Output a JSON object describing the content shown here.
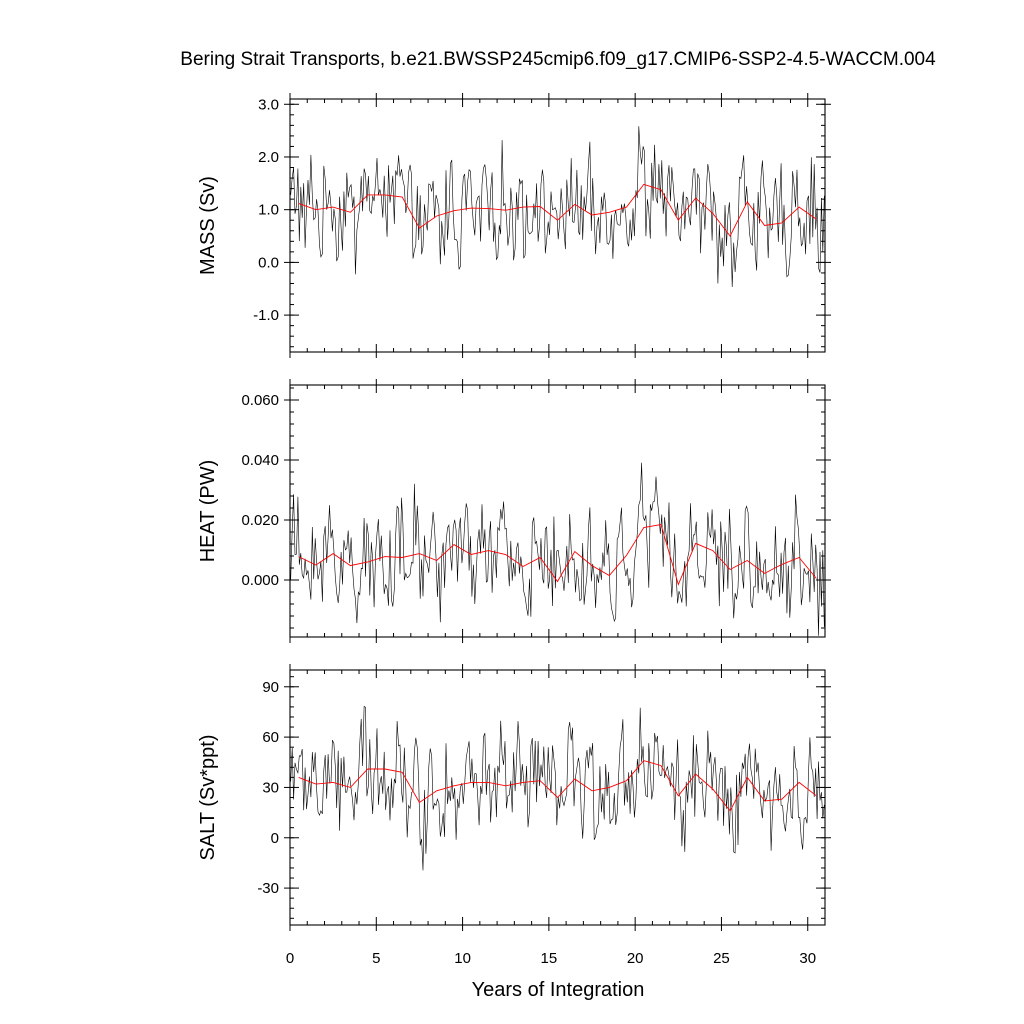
{
  "chart_data": {
    "title": "Bering Strait Transports, b.e21.BWSSP245cmip6.f09_g17.CMIP6-SSP2-4.5-WACCM.004",
    "xlabel": "Years of Integration",
    "xlim": [
      0,
      31
    ],
    "xticks": [
      0,
      5,
      10,
      15,
      20,
      25,
      30
    ],
    "panels": [
      {
        "id": "mass",
        "type": "line",
        "ylabel": "MASS (Sv)",
        "ylim": [
          -1.7,
          3.1
        ],
        "yticks": [
          3.0,
          2.0,
          1.0,
          0.0,
          -1.0
        ],
        "ytick_labels": [
          "3.0",
          "2.0",
          "1.0",
          "0.0",
          "-1.0"
        ],
        "annual_x": [
          0.5,
          1.5,
          2.5,
          3.5,
          4.5,
          5.5,
          6.5,
          7.5,
          8.5,
          9.5,
          10.5,
          11.5,
          12.5,
          13.5,
          14.5,
          15.5,
          16.5,
          17.5,
          18.5,
          19.5,
          20.5,
          21.5,
          22.5,
          23.5,
          24.5,
          25.5,
          26.5,
          27.5,
          28.5,
          29.5,
          30.5
        ],
        "annual_mean": [
          1.12,
          1.0,
          1.05,
          0.95,
          1.28,
          1.28,
          1.24,
          0.65,
          0.88,
          0.98,
          1.03,
          1.02,
          0.99,
          1.05,
          1.06,
          0.8,
          1.1,
          0.9,
          0.95,
          1.05,
          1.48,
          1.38,
          0.8,
          1.22,
          0.93,
          0.5,
          1.15,
          0.7,
          0.75,
          1.05,
          0.82
        ]
      },
      {
        "id": "heat",
        "type": "line",
        "ylabel": "HEAT (PW)",
        "ylim": [
          -0.019,
          0.065
        ],
        "yticks": [
          0.06,
          0.04,
          0.02,
          0.0
        ],
        "ytick_labels": [
          "0.060",
          "0.040",
          "0.020",
          "0.000"
        ],
        "annual_x": [
          0.5,
          1.5,
          2.5,
          3.5,
          4.5,
          5.5,
          6.5,
          7.5,
          8.5,
          9.5,
          10.5,
          11.5,
          12.5,
          13.5,
          14.5,
          15.5,
          16.5,
          17.5,
          18.5,
          19.5,
          20.5,
          21.5,
          22.5,
          23.5,
          24.5,
          25.5,
          26.5,
          27.5,
          28.5,
          29.5,
          30.5
        ],
        "annual_mean": [
          0.0078,
          0.005,
          0.0088,
          0.0048,
          0.006,
          0.0078,
          0.0075,
          0.0088,
          0.0065,
          0.0118,
          0.0085,
          0.0098,
          0.0085,
          0.0045,
          0.0075,
          -0.0005,
          0.0095,
          0.0048,
          0.0015,
          0.0082,
          0.0175,
          0.0185,
          -0.0015,
          0.0122,
          0.0098,
          0.0035,
          0.0065,
          0.0022,
          0.0052,
          0.0075,
          0.0005
        ]
      },
      {
        "id": "salt",
        "type": "line",
        "ylabel": "SALT (Sv*ppt)",
        "ylim": [
          -52,
          100
        ],
        "yticks": [
          90,
          60,
          30,
          0,
          -30
        ],
        "ytick_labels": [
          "90",
          "60",
          "30",
          "0",
          "-30"
        ],
        "annual_x": [
          0.5,
          1.5,
          2.5,
          3.5,
          4.5,
          5.5,
          6.5,
          7.5,
          8.5,
          9.5,
          10.5,
          11.5,
          12.5,
          13.5,
          14.5,
          15.5,
          16.5,
          17.5,
          18.5,
          19.5,
          20.5,
          21.5,
          22.5,
          23.5,
          24.5,
          25.5,
          26.5,
          27.5,
          28.5,
          29.5,
          30.5
        ],
        "annual_mean": [
          36,
          32,
          33,
          30,
          41,
          41,
          39,
          21,
          28,
          31,
          33,
          33,
          31,
          33,
          34,
          24,
          35,
          28,
          30,
          34,
          46,
          43,
          25,
          38,
          29,
          16,
          36,
          22,
          23,
          33,
          25
        ]
      }
    ]
  }
}
